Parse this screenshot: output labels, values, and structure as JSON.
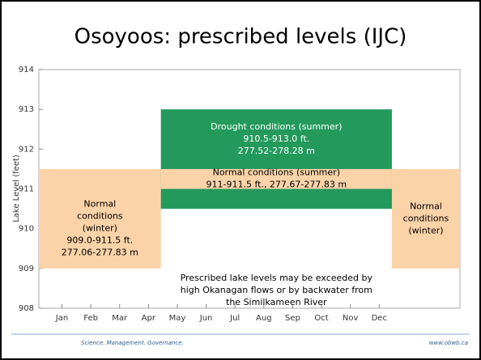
{
  "chart_data": {
    "type": "range-regions",
    "title": "Osoyoos: prescribed levels (IJC)",
    "y_label": "Lake Level (feet)",
    "xlim": [
      -0.3,
      14.3
    ],
    "xticks": [
      {
        "value": 0.5,
        "label": "Jan"
      },
      {
        "value": 1.5,
        "label": "Feb"
      },
      {
        "value": 2.5,
        "label": "Mar"
      },
      {
        "value": 3.5,
        "label": "Apr"
      },
      {
        "value": 4.5,
        "label": "May"
      },
      {
        "value": 5.5,
        "label": "Jun"
      },
      {
        "value": 6.5,
        "label": "Jul"
      },
      {
        "value": 7.5,
        "label": "Aug"
      },
      {
        "value": 8.5,
        "label": "Sep"
      },
      {
        "value": 9.5,
        "label": "Oct"
      },
      {
        "value": 10.5,
        "label": "Nov"
      },
      {
        "value": 11.5,
        "label": "Dec"
      }
    ],
    "ylim": [
      908,
      914
    ],
    "yticks": [
      908,
      909,
      910,
      911,
      912,
      913,
      914
    ],
    "regions": [
      {
        "x0": -0.3,
        "x1": 3.93,
        "y0": 909.0,
        "y1": 911.5,
        "color": "#fbd3a9",
        "label_color": "#000000",
        "label": [
          "Normal",
          "conditions",
          "(winter)",
          "909.0-911.5 ft.",
          "277.06-277.83 m"
        ]
      },
      {
        "x0": 11.94,
        "x1": 14.3,
        "y0": 909.0,
        "y1": 911.5,
        "color": "#fbd3a9",
        "label_color": "#000000",
        "label": [
          "Normal",
          "conditions",
          "(winter)"
        ]
      },
      {
        "x0": 3.93,
        "x1": 11.94,
        "y0": 910.5,
        "y1": 913.0,
        "color": "#239a5c",
        "label_color": "#ffffff",
        "label": [
          "Drought conditions (summer)",
          "910.5-913.0 ft.",
          "277.52-278.28 m"
        ]
      },
      {
        "x0": 3.93,
        "x1": 11.94,
        "y0": 911.0,
        "y1": 911.5,
        "color": "#fbd3a9",
        "label_color": "#000000",
        "label": [
          "Normal conditions (summer)",
          "911-911.5 ft., 277.67-277.83 m"
        ]
      }
    ],
    "note": [
      "Prescribed lake levels may be exceeded by",
      "high Okanagan flows or by backwater from",
      "the Similkameen River"
    ]
  },
  "footer": {
    "tagline": "Science. Management. Governance.",
    "url": "www.obwb.ca"
  }
}
